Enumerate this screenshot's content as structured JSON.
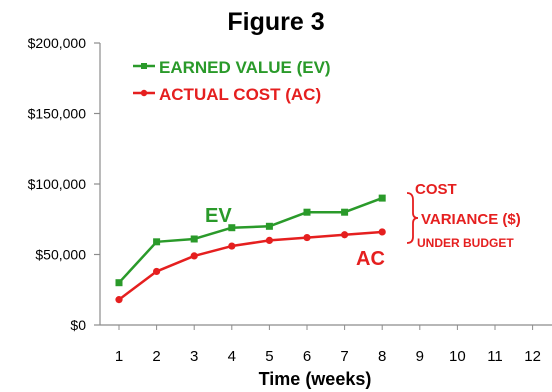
{
  "colors": {
    "ev": "#2a9a2a",
    "ac": "#e51f1f",
    "axis": "#8c8c8c",
    "text": "#000000"
  },
  "chart_data": {
    "type": "line",
    "title": "Figure 3",
    "xlabel": "Time (weeks)",
    "ylabel": "",
    "categories": [
      1,
      2,
      3,
      4,
      5,
      6,
      7,
      8,
      9,
      10,
      11,
      12
    ],
    "ylim": [
      0,
      200000
    ],
    "y_tick_labels": [
      "$0",
      "$50,000",
      "$100,000",
      "$150,000",
      "$200,000"
    ],
    "y_tick_values": [
      0,
      50000,
      100000,
      150000,
      200000
    ],
    "grid": false,
    "legend_position": "top-left",
    "series": [
      {
        "name": "EARNED VALUE (EV)",
        "short_label": "EV",
        "color": "#2a9a2a",
        "marker": "square",
        "x": [
          1,
          2,
          3,
          4,
          5,
          6,
          7,
          8
        ],
        "values": [
          30000,
          59000,
          61000,
          69000,
          70000,
          80000,
          80000,
          90000
        ]
      },
      {
        "name": "ACTUAL COST (AC)",
        "short_label": "AC",
        "color": "#e51f1f",
        "marker": "circle",
        "x": [
          1,
          2,
          3,
          4,
          5,
          6,
          7,
          8
        ],
        "values": [
          18000,
          38000,
          49000,
          56000,
          60000,
          62000,
          64000,
          66000
        ]
      }
    ],
    "annotations": {
      "variance_lines": [
        "COST",
        "VARIANCE ($)",
        "UNDER BUDGET"
      ]
    }
  }
}
